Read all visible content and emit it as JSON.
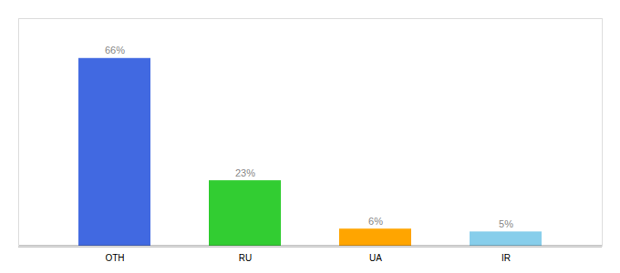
{
  "chart_data": {
    "type": "bar",
    "categories": [
      "OTH",
      "RU",
      "UA",
      "IR"
    ],
    "values": [
      66,
      23,
      6,
      5
    ],
    "value_labels": [
      "66%",
      "23%",
      "6%",
      "5%"
    ],
    "colors": [
      "#4169e1",
      "#32cd32",
      "#ffa500",
      "#87ceeb"
    ],
    "ylim": [
      0,
      80
    ],
    "grid": false,
    "data_labels": true,
    "tick_labels": "x"
  }
}
